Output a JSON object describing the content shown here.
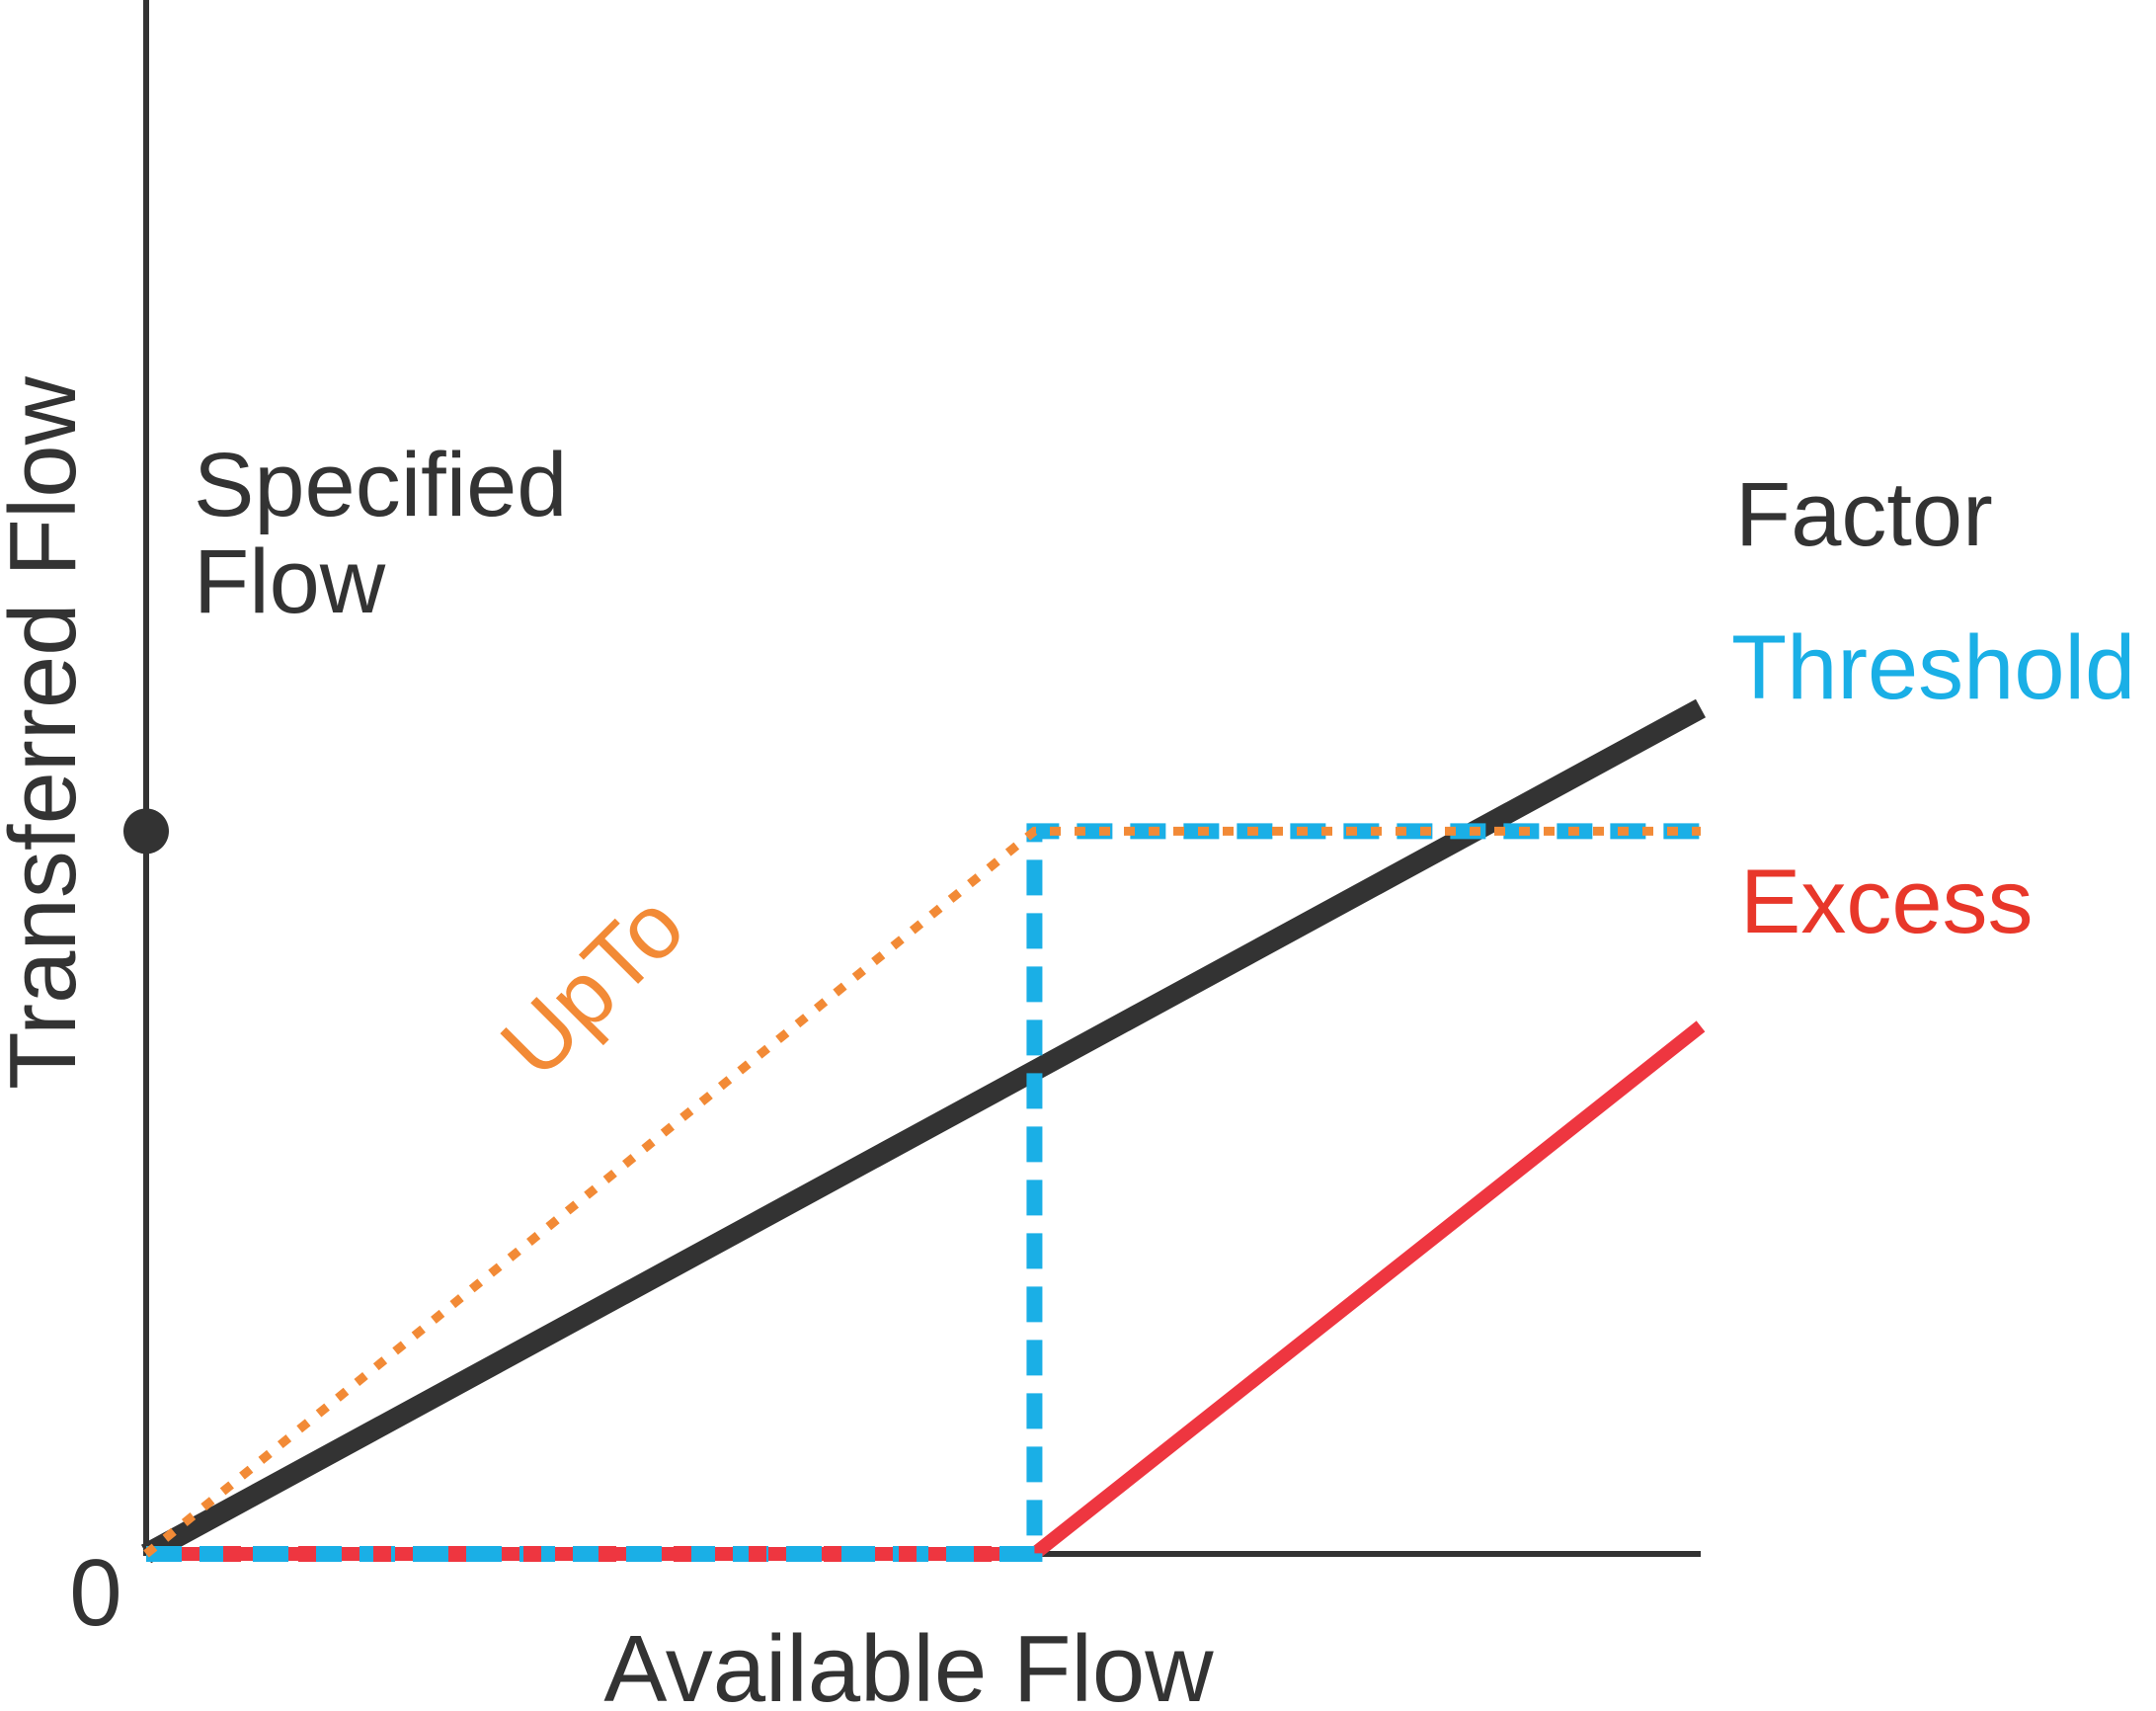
{
  "chart_data": {
    "type": "line",
    "title": "",
    "xlabel": "Available Flow",
    "ylabel": "Transferred Flow",
    "origin_label": "0",
    "xlim": [
      0,
      1.75
    ],
    "ylim": [
      0,
      2.15
    ],
    "y_marker": {
      "value": 1,
      "label_lines": [
        "Specified",
        "Flow"
      ]
    },
    "annotations": [
      {
        "text": "UpTo",
        "series": "UpTo"
      }
    ],
    "series": [
      {
        "name": "Factor",
        "color": "#333333",
        "style": "solid",
        "x": [
          0,
          1.75
        ],
        "y": [
          0,
          1.17
        ]
      },
      {
        "name": "Threshold",
        "color": "#1AAFE6",
        "style": "dashed",
        "x": [
          0,
          1,
          1,
          1.75
        ],
        "y": [
          0,
          0,
          1,
          1
        ]
      },
      {
        "name": "Excess",
        "color": "#EE3640",
        "style": "solid",
        "x": [
          0,
          1,
          1.75
        ],
        "y": [
          0,
          0,
          0.73
        ]
      },
      {
        "name": "UpTo",
        "color": "#F28A36",
        "style": "dotted",
        "x": [
          0,
          1,
          1.75
        ],
        "y": [
          0,
          1,
          1
        ]
      }
    ],
    "label_colors": {
      "axis": "#333333",
      "Factor": "#333333",
      "Threshold": "#1AAFE6",
      "Excess": "#E8372A",
      "UpTo": "#F28A36"
    }
  }
}
